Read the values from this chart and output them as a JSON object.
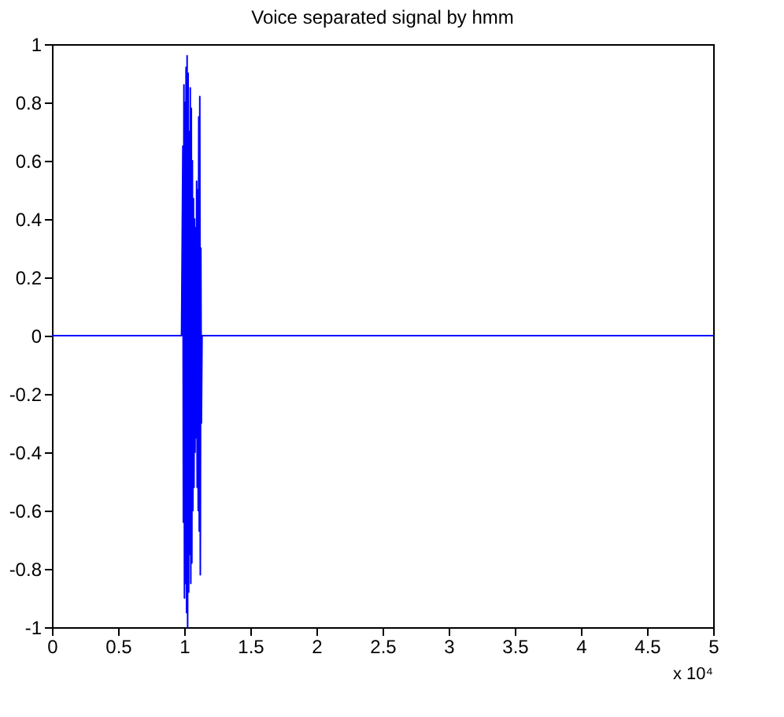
{
  "chart_data": {
    "type": "line",
    "title": "Voice separated signal by hmm",
    "x": [
      0,
      0.98,
      0.99,
      0.994,
      0.998,
      1.002,
      1.006,
      1.01,
      1.014,
      1.018,
      1.022,
      1.026,
      1.03,
      1.034,
      1.038,
      1.042,
      1.046,
      1.05,
      1.054,
      1.058,
      1.062,
      1.066,
      1.07,
      1.074,
      1.078,
      1.082,
      1.086,
      1.09,
      1.094,
      1.098,
      1.102,
      1.106,
      1.11,
      1.114,
      1.118,
      1.122,
      1.126,
      1.13,
      1.135,
      5
    ],
    "series": [
      {
        "color": "#0000ff",
        "values": [
          0,
          0,
          0.65,
          -0.64,
          0.86,
          -0.9,
          0.8,
          -0.85,
          0.92,
          -0.95,
          0.96,
          -1.0,
          0.9,
          -0.88,
          0.7,
          -0.75,
          0.85,
          -0.85,
          0.78,
          -0.78,
          0.6,
          -0.6,
          0.47,
          -0.52,
          0.4,
          -0.4,
          0.37,
          -0.35,
          0.53,
          -0.52,
          0.5,
          -0.6,
          0.75,
          -0.67,
          0.82,
          -0.82,
          0.3,
          -0.3,
          0,
          0
        ]
      }
    ],
    "xlim": [
      0,
      5
    ],
    "xticks": [
      0,
      0.5,
      1,
      1.5,
      2,
      2.5,
      3,
      3.5,
      4,
      4.5,
      5
    ],
    "ylim": [
      -1,
      1
    ],
    "yticks": [
      -1,
      -0.8,
      -0.6,
      -0.4,
      -0.2,
      0,
      0.2,
      0.4,
      0.6,
      0.8,
      1
    ],
    "annotations": [
      "x 10⁴"
    ],
    "grid": false
  }
}
